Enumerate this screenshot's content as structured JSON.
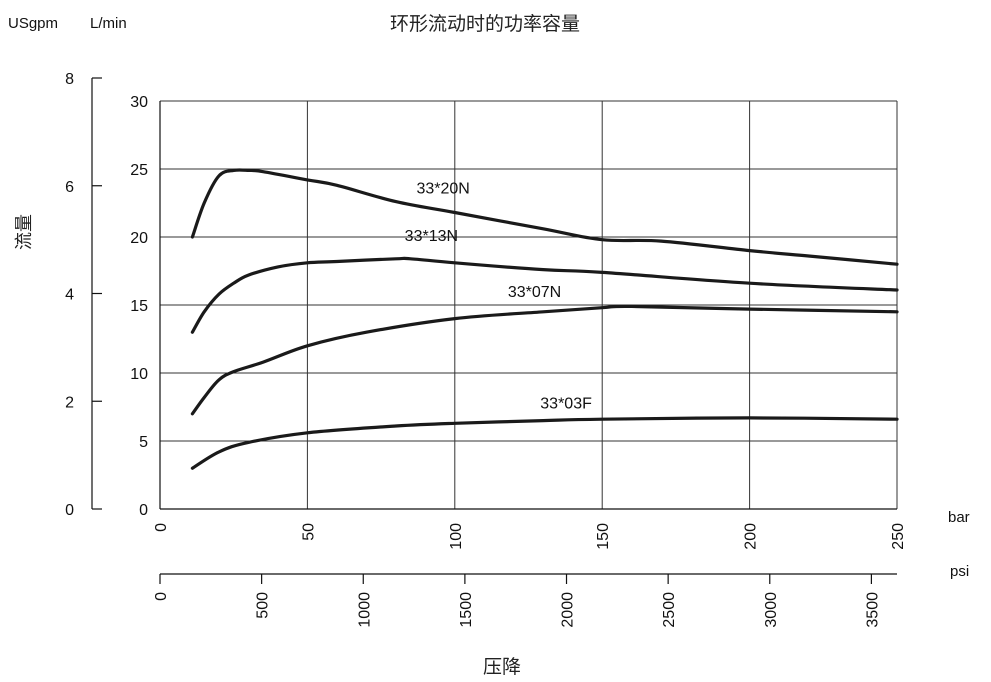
{
  "chart_data": {
    "type": "line",
    "title": "环形流动时的功率容量",
    "xlabel": "压降",
    "ylabel": "流量",
    "x_unit_primary": "bar",
    "x_unit_secondary": "psi",
    "y_unit_left": "USgpm",
    "y_unit_right": "L/min",
    "xlim": [
      0,
      250
    ],
    "ylim": [
      0,
      30
    ],
    "xticks": [
      "0",
      "50",
      "100",
      "150",
      "200",
      "250"
    ],
    "yticks": [
      "0",
      "5",
      "10",
      "15",
      "20",
      "25",
      "30"
    ],
    "psi_ticks": [
      "0",
      "500",
      "1000",
      "1500",
      "2000",
      "2500",
      "3000",
      "3500"
    ],
    "gpm_ticks": [
      "0",
      "2",
      "4",
      "6",
      "8"
    ],
    "grid": true,
    "series": [
      {
        "name": "33*20N",
        "x": [
          11,
          15,
          20,
          25,
          30,
          35,
          50,
          60,
          80,
          100,
          130,
          150,
          170,
          200,
          220,
          250
        ],
        "y": [
          20.0,
          22.5,
          24.5,
          24.9,
          24.9,
          24.8,
          24.2,
          23.8,
          22.6,
          21.8,
          20.6,
          19.8,
          19.7,
          19.0,
          18.6,
          18.0
        ]
      },
      {
        "name": "33*13N",
        "x": [
          11,
          15,
          20,
          25,
          30,
          40,
          50,
          60,
          80,
          85,
          100,
          130,
          150,
          200,
          250
        ],
        "y": [
          13.0,
          14.5,
          15.8,
          16.6,
          17.2,
          17.8,
          18.1,
          18.2,
          18.4,
          18.4,
          18.1,
          17.6,
          17.4,
          16.6,
          16.1
        ]
      },
      {
        "name": "33*07N",
        "x": [
          11,
          15,
          20,
          25,
          35,
          50,
          70,
          100,
          130,
          150,
          160,
          200,
          250
        ],
        "y": [
          7.0,
          8.2,
          9.5,
          10.1,
          10.8,
          12.0,
          13.0,
          14.0,
          14.5,
          14.8,
          14.9,
          14.7,
          14.5
        ]
      },
      {
        "name": "33*03F",
        "x": [
          11,
          20,
          30,
          50,
          80,
          100,
          130,
          150,
          200,
          250
        ],
        "y": [
          3.0,
          4.2,
          4.9,
          5.6,
          6.1,
          6.3,
          6.5,
          6.6,
          6.7,
          6.6
        ]
      }
    ]
  }
}
